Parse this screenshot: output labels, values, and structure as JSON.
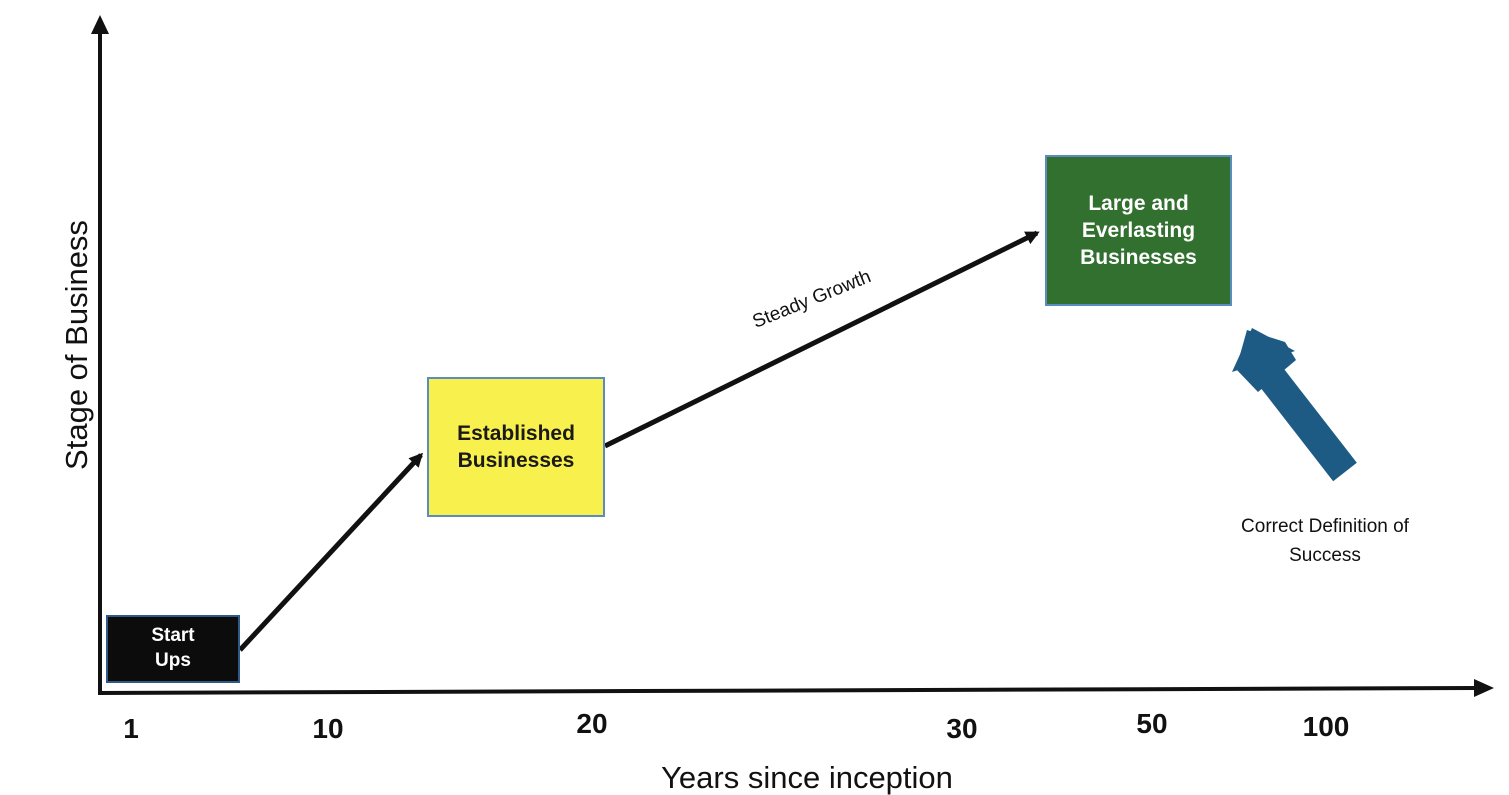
{
  "axes": {
    "x_label": "Years since inception",
    "y_label": "Stage of Business",
    "x_ticks": [
      "1",
      "10",
      "20",
      "30",
      "50",
      "100"
    ]
  },
  "stages": {
    "start_ups": "Start\nUps",
    "established": "Established\nBusinesses",
    "large": "Large and\nEverlasting\nBusinesses"
  },
  "annotations": {
    "steady_growth": "Steady Growth",
    "success": "Correct Definition of\nSuccess"
  },
  "colors": {
    "start_ups_fill": "#0c0c0c",
    "established_fill": "#f8f04c",
    "large_fill": "#32702f",
    "pointer_arrow": "#1d5b85",
    "axis": "#111111"
  }
}
